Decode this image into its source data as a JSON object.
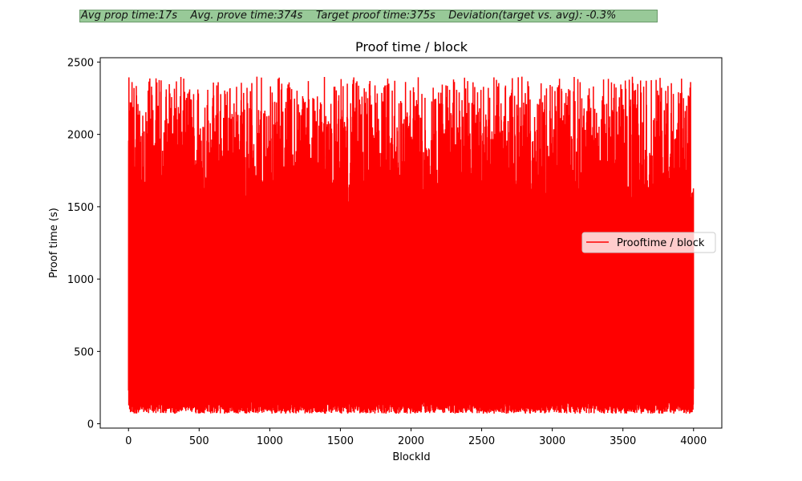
{
  "header": {
    "stats_text": "Avg prop time:17s    Avg. prove time:374s    Target proof time:375s    Deviation(target vs. avg): -0.3%"
  },
  "colors": {
    "series": "#ff0000",
    "info_box_bg": "#98c998"
  },
  "chart_data": {
    "type": "line",
    "title": "Proof time / block",
    "xlabel": "BlockId",
    "ylabel": "Proof time (s)",
    "xlim": [
      -200,
      4200
    ],
    "ylim": [
      -30,
      2530
    ],
    "xticks": [
      0,
      500,
      1000,
      1500,
      2000,
      2500,
      3000,
      3500,
      4000
    ],
    "yticks": [
      0,
      500,
      1000,
      1500,
      2000,
      2500
    ],
    "x_range": [
      0,
      4000
    ],
    "y_envelope": {
      "min_approx": 70,
      "max_approx": 2400,
      "start_value": 230,
      "end_value": 240
    },
    "grid": false,
    "legend": {
      "position": "right",
      "entries": [
        "Prooftime / block"
      ]
    },
    "series": [
      {
        "name": "Prooftime / block",
        "color": "#ff0000"
      }
    ]
  }
}
